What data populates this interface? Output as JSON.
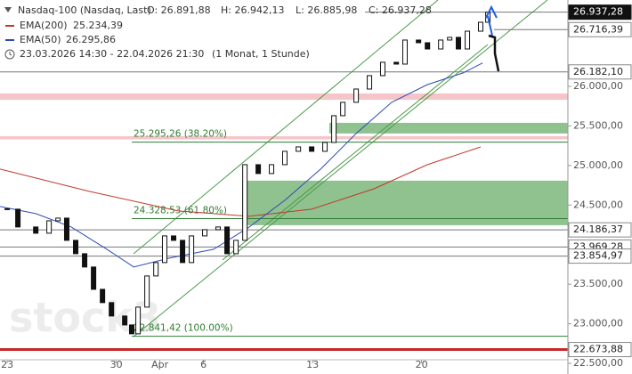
{
  "chart_data": {
    "type": "candlestick",
    "title": "Nasdaq-100 (Nasdaq, Last)",
    "ohlc_labels": [
      "O: 26.891,88",
      "H: 26.942,13",
      "L: 26.885,98",
      "C: 26.937,28"
    ],
    "period": "23.03.2026 14:30 - 22.04.2026 21:30",
    "interval": "(1 Monat, 1 Stunde)",
    "watermark": "stock3",
    "xlim": [
      -0.33,
      25.71
    ],
    "xticks": [
      {
        "value": 0,
        "label": "23"
      },
      {
        "value": 5,
        "label": "30"
      },
      {
        "value": 7,
        "label": "Apr"
      },
      {
        "value": 9,
        "label": "6"
      },
      {
        "value": 14,
        "label": "13"
      },
      {
        "value": 19,
        "label": "20"
      }
    ],
    "ylim": [
      22365,
      27091
    ],
    "yticks": [
      {
        "value": 22500,
        "label": "22.500,00"
      },
      {
        "value": 23000,
        "label": "23.000,00"
      },
      {
        "value": 23500,
        "label": "23.500,00"
      },
      {
        "value": 24500,
        "label": "24.500,00"
      },
      {
        "value": 25000,
        "label": "25.000,00"
      },
      {
        "value": 25500,
        "label": "25.500,00"
      },
      {
        "value": 26000,
        "label": "26.000,00"
      }
    ],
    "series": [
      {
        "name": "Nasdaq-100",
        "color": "#111111",
        "x": [
          0,
          0.49,
          1.31,
          1.92,
          2.33,
          2.73,
          3.14,
          3.55,
          3.96,
          4.37,
          4.78,
          5.39,
          5.71,
          6,
          6.41,
          6.82,
          7.22,
          7.63,
          8.04,
          8.45,
          9.06,
          9.67,
          10.08,
          10.49,
          10.9,
          11.51,
          12.12,
          12.73,
          13.35,
          13.96,
          14.57,
          14.98,
          15.39,
          16,
          16.61,
          17.22,
          17.84,
          18.24,
          18.86,
          19.27,
          19.88,
          20.29,
          20.69,
          21.1,
          21.71,
          22.04
        ],
        "values": [
          24448,
          24223,
          24144,
          24301,
          24335,
          24054,
          23885,
          23717,
          23435,
          23267,
          23098,
          22985,
          22873,
          23210,
          23604,
          23773,
          24110,
          24054,
          23773,
          24110,
          24189,
          24223,
          23885,
          24054,
          25010,
          24898,
          25010,
          25179,
          25235,
          25179,
          25291,
          25629,
          25798,
          25966,
          26135,
          26304,
          26281,
          26585,
          26551,
          26472,
          26585,
          26619,
          26472,
          26697,
          26810,
          26937
        ]
      },
      {
        "name": "EMA(200)",
        "last_label": "25.234,39",
        "color": "#c0392b",
        "x": [
          -0.33,
          3.76,
          7.84,
          11.1,
          13.96,
          16.82,
          19.27,
          21.71
        ],
        "values": [
          24954,
          24673,
          24425,
          24358,
          24448,
          24706,
          25010,
          25234
        ]
      },
      {
        "name": "EMA(50)",
        "last_label": "26.295,86",
        "color": "#2b4bb5",
        "x": [
          -0.33,
          1.31,
          2.94,
          4.57,
          5.8,
          7.43,
          9.47,
          11.1,
          12.73,
          14.37,
          16,
          17.63,
          19.27,
          20.9,
          21.8
        ],
        "values": [
          24482,
          24392,
          24223,
          23942,
          23717,
          23829,
          23942,
          24223,
          24560,
          24954,
          25404,
          25798,
          26022,
          26169,
          26296
        ]
      }
    ],
    "levels": [
      {
        "value": 26937.28,
        "label": "26.937,28",
        "style": "current"
      },
      {
        "value": 26716.39,
        "label": "26.716,39",
        "style": "plain"
      },
      {
        "value": 26182.1,
        "label": "26.182,10",
        "style": "plain"
      },
      {
        "value": 24186.37,
        "label": "24.186,37",
        "style": "plain"
      },
      {
        "value": 23969.28,
        "label": "23.969,28",
        "style": "plain"
      },
      {
        "value": 23854.97,
        "label": "23.854,97",
        "style": "plain"
      },
      {
        "value": 22673.88,
        "label": "22.673,88",
        "style": "support"
      }
    ],
    "fibonacci": [
      {
        "value": 25295.26,
        "label": "25.295,26 (38.20%)"
      },
      {
        "value": 24328.53,
        "label": "24.328,53 (61.80%)"
      },
      {
        "value": 22841.42,
        "label": "22.841,42 (100.00%)"
      }
    ],
    "zones": [
      {
        "from": 25830,
        "to": 25910,
        "color": "#f4b6bd"
      },
      {
        "from": 25330,
        "to": 25370,
        "color": "#f4b6bd"
      },
      {
        "from": 25404,
        "to": 25539,
        "color": "#5fa85f"
      },
      {
        "from": 24245,
        "to": 24808,
        "color": "#5fa85f"
      }
    ]
  }
}
